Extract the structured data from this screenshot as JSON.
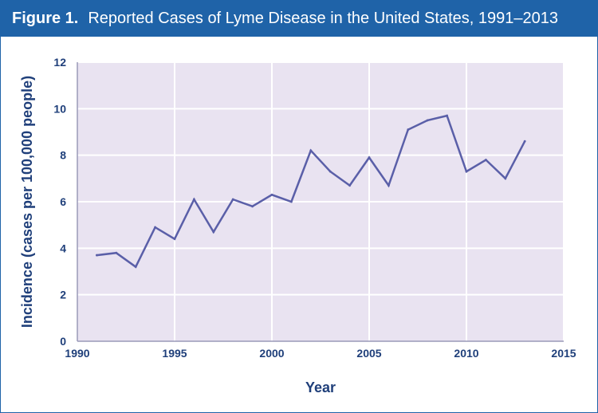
{
  "header": {
    "figure_label": "Figure 1.",
    "title": "Reported Cases of Lyme Disease in the United States, 1991–2013"
  },
  "colors": {
    "header_bg": "#1f63a8",
    "plot_bg": "#e9e3f1",
    "grid": "#ffffff",
    "line": "#5a5fa8",
    "text": "#1f3f7a"
  },
  "chart_data": {
    "type": "line",
    "title": "Reported Cases of Lyme Disease in the United States, 1991–2013",
    "xlabel": "Year",
    "ylabel": "Incidence (cases per 100,000 people)",
    "xlim": [
      1990,
      2015
    ],
    "ylim": [
      0,
      12
    ],
    "xticks": [
      1990,
      1995,
      2000,
      2005,
      2010,
      2015
    ],
    "yticks": [
      0,
      2,
      4,
      6,
      8,
      10,
      12
    ],
    "grid": true,
    "series": [
      {
        "x": [
          1991,
          1992,
          1993,
          1994,
          1995,
          1996,
          1997,
          1998,
          1999,
          2000,
          2001,
          2002,
          2003,
          2004,
          2005,
          2006,
          2007,
          2008,
          2009,
          2010,
          2011,
          2012,
          2013
        ],
        "y": [
          3.7,
          3.8,
          3.2,
          4.9,
          4.4,
          6.1,
          4.7,
          6.1,
          5.8,
          6.3,
          6.0,
          8.2,
          7.3,
          6.7,
          7.9,
          6.7,
          9.1,
          9.5,
          9.7,
          7.3,
          7.8,
          7.0,
          8.6
        ]
      }
    ]
  }
}
